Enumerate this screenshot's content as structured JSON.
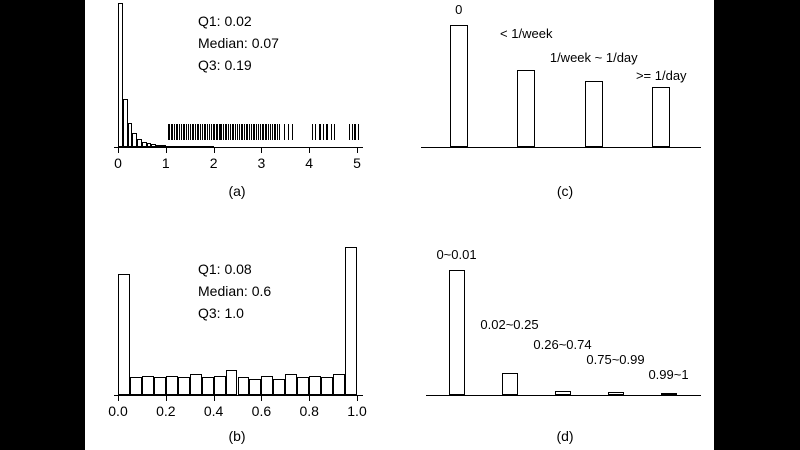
{
  "figure": {
    "background": "#ffffff",
    "letterbox_color": "#000000",
    "ink_color": "#000000"
  },
  "chart_data": [
    {
      "id": "a",
      "type": "histogram",
      "caption": "(a)",
      "xlim": [
        0,
        5.1
      ],
      "x_ticks": [
        0,
        1,
        2,
        3,
        4,
        5
      ],
      "x_tick_labels": [
        "0",
        "1",
        "2",
        "3",
        "4",
        "5"
      ],
      "bin_start": 0,
      "bin_width": 0.1,
      "bin_heights_rel": [
        1.0,
        0.33,
        0.17,
        0.1,
        0.055,
        0.038,
        0.027,
        0.02,
        0.015,
        0.011,
        0.009,
        0.007,
        0.006,
        0.005,
        0.004,
        0.003,
        0.003,
        0.002,
        0.002,
        0.002
      ],
      "annotations": [
        "Q1: 0.02",
        "Median: 0.07",
        "Q3: 0.19"
      ],
      "rug_clusters": [
        {
          "start": 1.05,
          "end": 3.35,
          "count": 75
        },
        {
          "start": 3.5,
          "end": 3.62,
          "count": 3
        },
        {
          "start": 4.08,
          "end": 4.5,
          "count": 9
        },
        {
          "start": 4.85,
          "end": 5.02,
          "count": 5
        }
      ]
    },
    {
      "id": "b",
      "type": "histogram",
      "caption": "(b)",
      "xlim": [
        0,
        1
      ],
      "x_ticks": [
        0,
        0.2,
        0.4,
        0.6,
        0.8,
        1.0
      ],
      "x_tick_labels": [
        "0.0",
        "0.2",
        "0.4",
        "0.6",
        "0.8",
        "1.0"
      ],
      "bin_start": 0,
      "bin_width": 0.05,
      "bin_heights_rel": [
        0.82,
        0.12,
        0.13,
        0.12,
        0.13,
        0.12,
        0.14,
        0.12,
        0.13,
        0.17,
        0.12,
        0.11,
        0.13,
        0.11,
        0.14,
        0.12,
        0.13,
        0.12,
        0.14,
        1.0
      ],
      "annotations": [
        "Q1: 0.08",
        "Median: 0.6",
        "Q3: 1.0"
      ]
    },
    {
      "id": "c",
      "type": "bar",
      "caption": "(c)",
      "categories": [
        "0",
        "< 1/week",
        "1/week ~ 1/day",
        ">= 1/day"
      ],
      "values_rel": [
        1.0,
        0.63,
        0.54,
        0.49
      ],
      "label_heights_rel": [
        1.06,
        0.86,
        0.66,
        0.52
      ]
    },
    {
      "id": "d",
      "type": "bar",
      "caption": "(d)",
      "categories": [
        "0~0.01",
        "0.02~0.25",
        "0.26~0.74",
        "0.75~0.99",
        "0.99~1"
      ],
      "values_rel": [
        1.0,
        0.18,
        0.035,
        0.025,
        0.015
      ],
      "label_heights_rel": [
        1.06,
        0.5,
        0.34,
        0.22,
        0.1
      ]
    }
  ]
}
